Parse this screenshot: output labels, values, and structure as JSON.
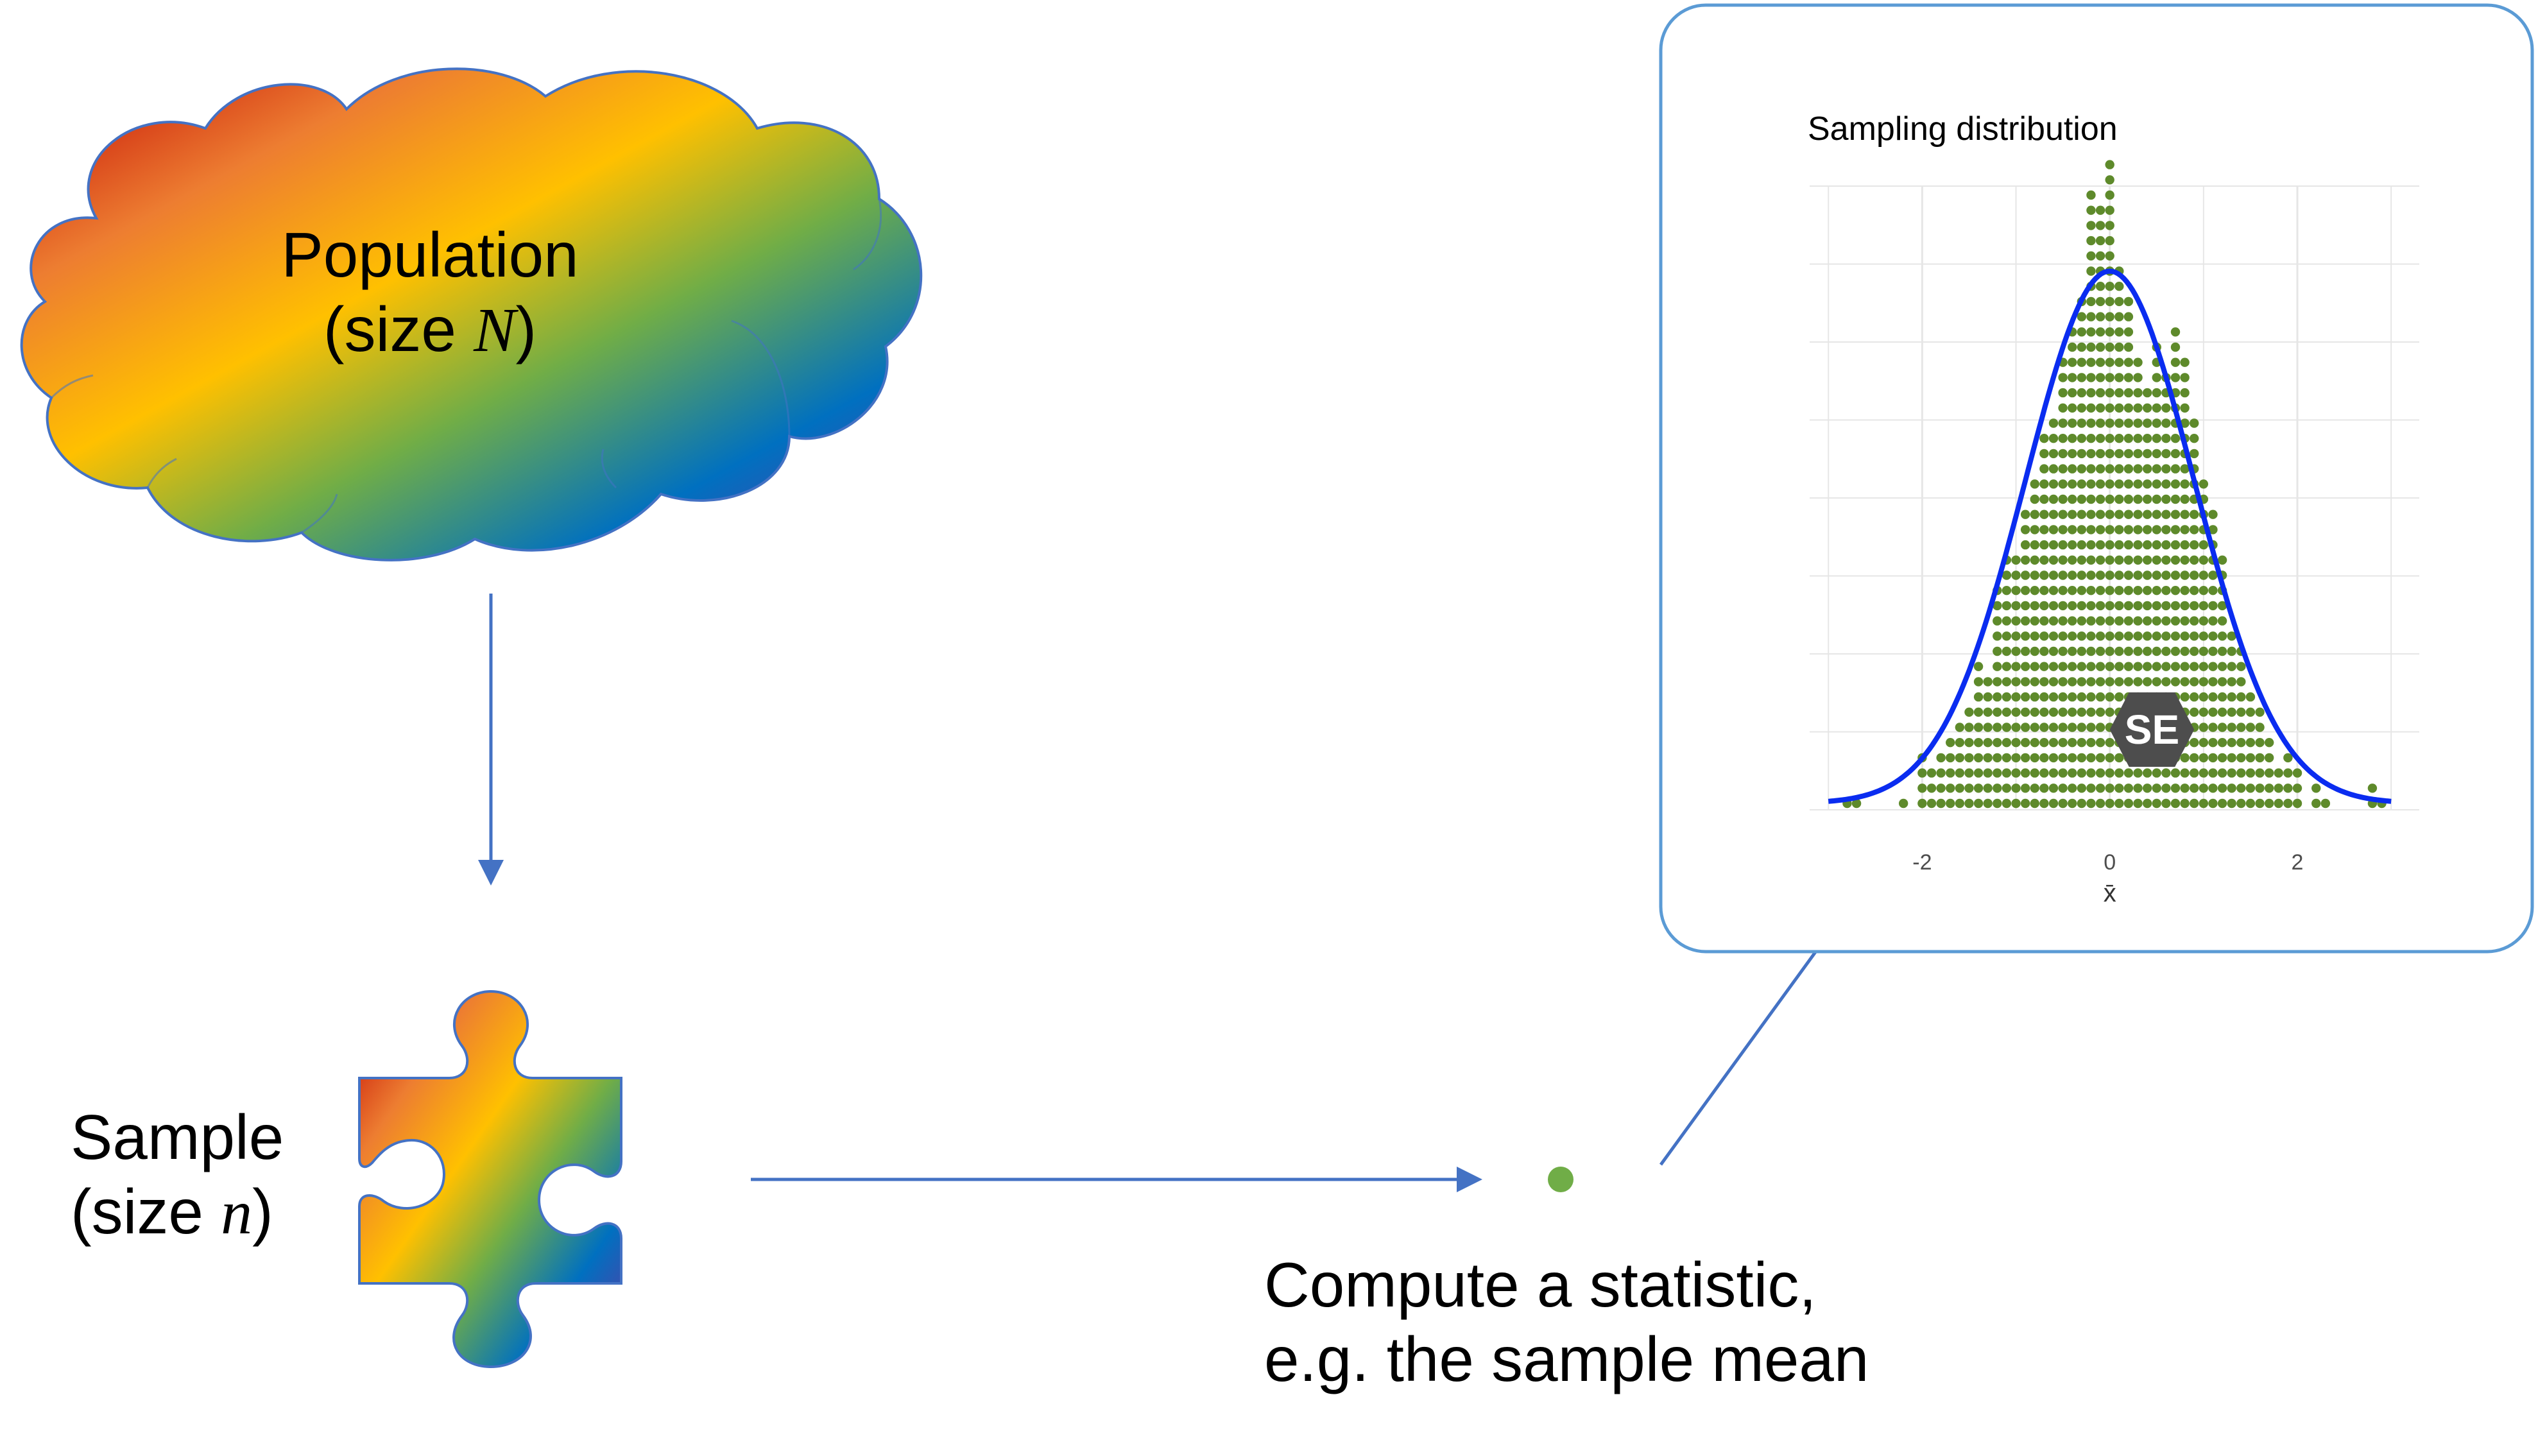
{
  "population": {
    "line1": "Population",
    "line2_prefix": "(size ",
    "symbol": "N",
    "line2_suffix": ")"
  },
  "sample": {
    "line1": "Sample",
    "line2_prefix": "(size ",
    "symbol": "n",
    "line2_suffix": ")"
  },
  "statistic": {
    "line1": "Compute a statistic,",
    "line2": "e.g. the sample mean"
  },
  "se_label": "SE",
  "colors": {
    "arrow": "#4472c4",
    "dot": "#5e8a2b",
    "stat_dot": "#70ad47",
    "curve": "#0a2cf0",
    "panel_border": "#5b9bd5",
    "se_arrow": "#4d4d4d",
    "rainbow": [
      "#c00000",
      "#ed7d31",
      "#ffc000",
      "#70ad47",
      "#0070c0",
      "#7030a0"
    ]
  },
  "chart_data": {
    "type": "scatter",
    "title": "Sampling distribution",
    "xlabel": "x̄",
    "ylabel": "",
    "xlim": [
      -3.2,
      3.3
    ],
    "x_ticks": [
      -2,
      0,
      2
    ],
    "x_tick_labels": [
      "-2",
      "0",
      "2"
    ],
    "grid": true,
    "legend": "none",
    "dot_columns": {
      "x": [
        -2.8,
        -2.7,
        -2.2,
        -2.0,
        -1.9,
        -1.8,
        -1.7,
        -1.6,
        -1.5,
        -1.4,
        -1.3,
        -1.2,
        -1.1,
        -1.0,
        -0.9,
        -0.8,
        -0.7,
        -0.6,
        -0.5,
        -0.4,
        -0.3,
        -0.2,
        -0.1,
        0.0,
        0.1,
        0.2,
        0.3,
        0.4,
        0.5,
        0.6,
        0.7,
        0.8,
        0.9,
        1.0,
        1.1,
        1.2,
        1.3,
        1.4,
        1.5,
        1.6,
        1.7,
        1.8,
        1.9,
        2.0,
        2.2,
        2.3,
        2.8,
        2.9
      ],
      "count": [
        1,
        1,
        1,
        4,
        3,
        4,
        5,
        6,
        7,
        10,
        9,
        15,
        17,
        17,
        20,
        22,
        25,
        26,
        30,
        32,
        34,
        41,
        40,
        43,
        36,
        34,
        30,
        28,
        31,
        29,
        32,
        30,
        26,
        22,
        20,
        17,
        12,
        11,
        8,
        7,
        5,
        3,
        4,
        3,
        2,
        1,
        2,
        1
      ]
    },
    "normal_curve": {
      "mean": 0,
      "sd": 0.9,
      "peak_count": 35
    },
    "annotation": {
      "text": "SE",
      "from_x": 0,
      "to_x": 0.9
    }
  }
}
